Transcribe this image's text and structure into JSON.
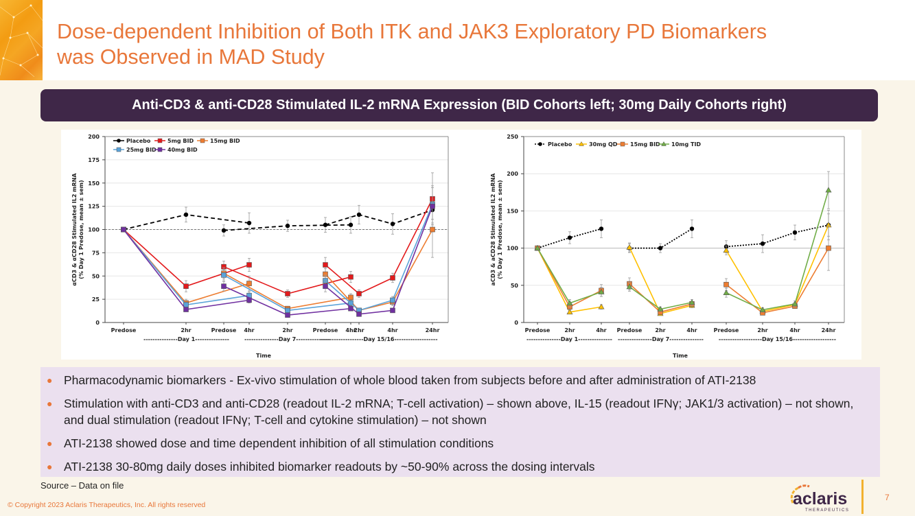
{
  "header": {
    "title_line1": "Dose-dependent Inhibition of Both ITK and JAK3 Exploratory PD Biomarkers",
    "title_line2": "was Observed in MAD Study"
  },
  "banner": {
    "text": "Anti-CD3 & anti-CD28 Stimulated IL-2 mRNA Expression  (BID Cohorts left; 30mg Daily Cohorts right)"
  },
  "bullets": [
    "Pharmacodynamic biomarkers - Ex-vivo stimulation of whole blood taken from subjects before and after administration of ATI-2138",
    "Stimulation with anti-CD3 and anti-CD28 (readout IL-2 mRNA; T-cell activation) – shown above, IL-15 (readout IFNγ; JAK1/3 activation) – not shown, and dual stimulation (readout IFNγ; T-cell and cytokine stimulation) – not shown",
    "ATI-2138 showed dose and time dependent inhibition of all stimulation conditions",
    "ATI-2138 30-80mg daily doses inhibited biomarker readouts by ~50-90% across the dosing intervals"
  ],
  "footer": {
    "source": "Source – Data on file",
    "copyright": "© Copyright 2023 Aclaris Therapeutics, Inc. All rights reserved",
    "brand_name": "aclaris",
    "brand_sub": "THERAPEUTICS",
    "page_number": "7"
  },
  "colors": {
    "accent": "#e8773a",
    "banner": "#3f2748",
    "bullet_bg": "#ebe0ef",
    "page_bg": "#faf5e9"
  },
  "chart_data": [
    {
      "type": "line",
      "title": "BID Cohorts",
      "xlabel": "Time",
      "ylabel": "αCD3 & αCD28 Stimulated IL2 mRNA (% Day 1 Predose, mean ± sem)",
      "ylim": [
        0,
        200
      ],
      "yticks": [
        0,
        25,
        50,
        75,
        100,
        125,
        150,
        175,
        200
      ],
      "reference_line": 100,
      "legend_position": "top-left",
      "groups": [
        {
          "label": "---------------Day 1---------------",
          "categories": [
            "Predose",
            "2hr",
            "4hr"
          ]
        },
        {
          "label": "---------------Day 7---------------",
          "categories": [
            "Predose",
            "2hr",
            "4hr"
          ]
        },
        {
          "label": "-------------------Day 15/16-------------------",
          "categories": [
            "Predose",
            "2hr",
            "4hr",
            "24hr"
          ]
        }
      ],
      "series": [
        {
          "name": "Placebo",
          "color": "#000000",
          "marker": "circle",
          "dash": "dashed",
          "values": [
            [
              100,
              116,
              107
            ],
            [
              99,
              104,
              105
            ],
            [
              105,
              116,
              106,
              121
            ]
          ],
          "errors": [
            [
              0,
              8,
              11
            ],
            [
              6,
              6,
              9
            ],
            [
              8,
              10,
              11,
              10
            ]
          ]
        },
        {
          "name": "5mg BID",
          "color": "#e31a1c",
          "marker": "square",
          "dash": "solid",
          "values": [
            [
              100,
              39,
              62
            ],
            [
              60,
              31,
              49
            ],
            [
              62,
              31,
              48,
              133
            ]
          ],
          "errors": [
            [
              0,
              6,
              7
            ],
            [
              6,
              4,
              6
            ],
            [
              8,
              4,
              5,
              28
            ]
          ]
        },
        {
          "name": "15mg BID",
          "color": "#ed7d31",
          "marker": "square",
          "dash": "solid",
          "values": [
            [
              100,
              21,
              42
            ],
            [
              53,
              15,
              27
            ],
            [
              52,
              13,
              22,
              100
            ]
          ],
          "errors": [
            [
              0,
              4,
              8
            ],
            [
              6,
              2,
              4
            ],
            [
              6,
              2,
              4,
              30
            ]
          ]
        },
        {
          "name": "25mg BID",
          "color": "#5ba3d9",
          "marker": "square",
          "dash": "solid",
          "values": [
            [
              100,
              19,
              29
            ],
            [
              51,
              13,
              21
            ],
            [
              45,
              13,
              24,
              127
            ]
          ],
          "errors": [
            [
              0,
              3,
              4
            ],
            [
              6,
              2,
              3
            ],
            [
              6,
              2,
              4,
              20
            ]
          ]
        },
        {
          "name": "40mg BID",
          "color": "#7030a0",
          "marker": "square",
          "dash": "solid",
          "values": [
            [
              100,
              14,
              24
            ],
            [
              39,
              8,
              15
            ],
            [
              39,
              9,
              13,
              125
            ]
          ],
          "errors": [
            [
              0,
              2,
              3
            ],
            [
              5,
              2,
              2
            ],
            [
              6,
              2,
              2,
              20
            ]
          ]
        }
      ]
    },
    {
      "type": "line",
      "title": "30mg Daily Cohorts",
      "xlabel": "Time",
      "ylabel": "aCD3 & aCD28 Stimulated IL2 mRNA (% Day 1 Predose, mean ± sem)",
      "ylim": [
        0,
        250
      ],
      "yticks": [
        0,
        50,
        100,
        150,
        200,
        250
      ],
      "reference_line": 100,
      "legend_position": "top",
      "groups": [
        {
          "label": "---------------Day 1---------------",
          "categories": [
            "Predose",
            "2hr",
            "4hr"
          ]
        },
        {
          "label": "---------------Day 7---------------",
          "categories": [
            "Predose",
            "2hr",
            "4hr"
          ]
        },
        {
          "label": "-------------------Day 15/16-------------------",
          "categories": [
            "Predose",
            "2hr",
            "4hr",
            "24hr"
          ]
        }
      ],
      "series": [
        {
          "name": "Placebo",
          "color": "#000000",
          "marker": "circle",
          "dash": "dotted",
          "values": [
            [
              100,
              114,
              126
            ],
            [
              100,
              100,
              126
            ],
            [
              102,
              106,
              121,
              131
            ]
          ],
          "errors": [
            [
              0,
              8,
              12
            ],
            [
              6,
              6,
              12
            ],
            [
              8,
              12,
              10,
              15
            ]
          ]
        },
        {
          "name": "30mg QD",
          "color": "#ffc000",
          "marker": "triangle",
          "dash": "solid",
          "values": [
            [
              100,
              14,
              21
            ],
            [
              101,
              12,
              23
            ],
            [
              97,
              15,
              24,
              131
            ]
          ],
          "errors": [
            [
              0,
              2,
              3
            ],
            [
              6,
              2,
              3
            ],
            [
              6,
              2,
              3,
              20
            ]
          ]
        },
        {
          "name": "15mg BID",
          "color": "#ed7d31",
          "marker": "square",
          "dash": "solid",
          "values": [
            [
              100,
              21,
              43
            ],
            [
              52,
              14,
              25
            ],
            [
              51,
              13,
              22,
              100
            ]
          ],
          "errors": [
            [
              0,
              4,
              8
            ],
            [
              8,
              2,
              3
            ],
            [
              8,
              2,
              3,
              30
            ]
          ]
        },
        {
          "name": "10mg TID",
          "color": "#70ad47",
          "marker": "triangle",
          "dash": "solid",
          "values": [
            [
              100,
              26,
              41
            ],
            [
              48,
              18,
              27
            ],
            [
              40,
              17,
              25,
              178
            ]
          ],
          "errors": [
            [
              0,
              5,
              6
            ],
            [
              6,
              3,
              4
            ],
            [
              6,
              3,
              4,
              25
            ]
          ]
        }
      ]
    }
  ]
}
